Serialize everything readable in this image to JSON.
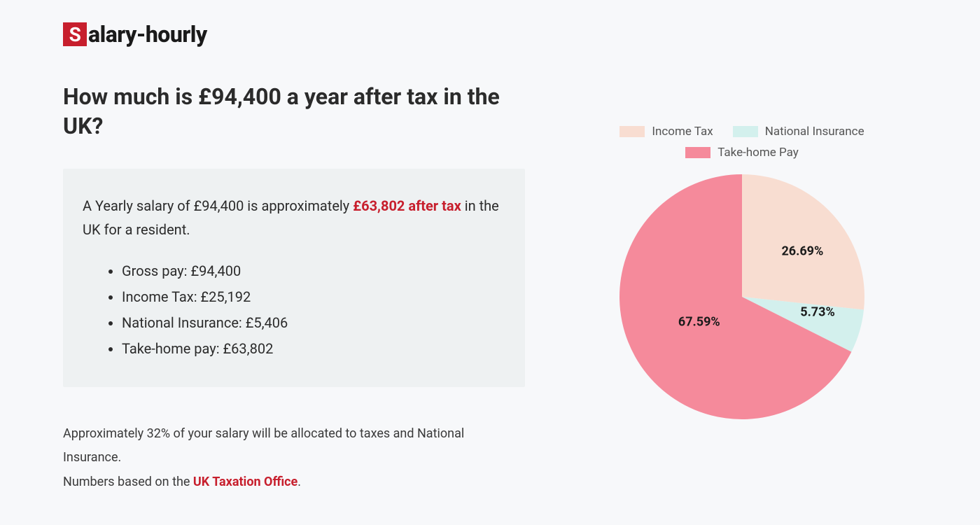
{
  "logo": {
    "initial": "S",
    "rest": "alary-hourly"
  },
  "heading": "How much is £94,400 a year after tax in the UK?",
  "infobox": {
    "lead_pre": "A Yearly salary of £94,400 is approximately ",
    "lead_highlight": "£63,802 after tax",
    "lead_post": " in the UK for a resident.",
    "items": [
      "Gross pay: £94,400",
      "Income Tax: £25,192",
      "National Insurance: £5,406",
      "Take-home pay: £63,802"
    ]
  },
  "footnote": {
    "line1": "Approximately 32% of your salary will be allocated to taxes and National Insurance.",
    "line2_pre": "Numbers based on the ",
    "line2_link": "UK Taxation Office",
    "line2_post": "."
  },
  "chart": {
    "type": "pie",
    "background_color": "#f7f8fa",
    "radius": 175,
    "start_angle_deg": -90,
    "slices": [
      {
        "label": "Income Tax",
        "value": 26.69,
        "color": "#f8ddd1",
        "display": "26.69%"
      },
      {
        "label": "National Insurance",
        "value": 5.73,
        "color": "#d3f0ed",
        "display": "5.73%"
      },
      {
        "label": "Take-home Pay",
        "value": 67.59,
        "color": "#f58a9b",
        "display": "67.59%"
      }
    ],
    "legend": {
      "swatch_width": 36,
      "swatch_height": 16,
      "font_size": 17,
      "text_color": "#555555"
    },
    "slice_label": {
      "font_size": 18,
      "font_weight": 700,
      "color": "#1a1a1a"
    },
    "label_positions": [
      {
        "left_pct": 74,
        "top_pct": 32
      },
      {
        "left_pct": 80,
        "top_pct": 56
      },
      {
        "left_pct": 33,
        "top_pct": 60
      }
    ]
  }
}
